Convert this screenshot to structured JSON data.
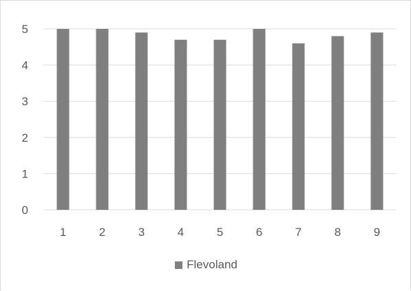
{
  "chart_data": {
    "type": "bar",
    "categories": [
      "1",
      "2",
      "3",
      "4",
      "5",
      "6",
      "7",
      "8",
      "9"
    ],
    "series": [
      {
        "name": "Flevoland",
        "values": [
          5.0,
          5.0,
          4.9,
          4.7,
          4.7,
          5.0,
          4.6,
          4.8,
          4.9
        ],
        "color": "#7f7f7f"
      }
    ],
    "title": "",
    "xlabel": "",
    "ylabel": "",
    "ylim": [
      0,
      5
    ],
    "yticks": [
      "0",
      "1",
      "2",
      "3",
      "4",
      "5"
    ],
    "grid": true,
    "legend_position": "bottom",
    "gridline_color": "#d9d9d9",
    "label_color": "#595959"
  }
}
